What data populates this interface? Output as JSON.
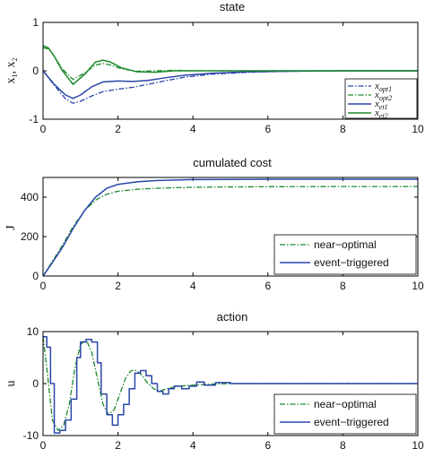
{
  "colors": {
    "blue": "#2a46a8",
    "green": "#1e8a2e",
    "axis": "#000000"
  },
  "chart_data": [
    {
      "type": "line",
      "title": "state",
      "ylabel": "x1, x2",
      "xlim": [
        0,
        10
      ],
      "ylim": [
        -1,
        1
      ],
      "xticks": [
        "0",
        "2",
        "4",
        "6",
        "8",
        "10"
      ],
      "yticks": [
        "-1",
        "0",
        "1"
      ],
      "legend_position": "bottom-right",
      "series": [
        {
          "name": "x_opt1",
          "style": "dashdot",
          "color": "blue",
          "x": [
            0,
            0.3,
            0.6,
            0.8,
            1.0,
            1.3,
            1.6,
            2.0,
            2.4,
            2.8,
            3.3,
            3.8,
            4.5,
            5.5,
            6.5,
            8,
            10
          ],
          "y": [
            0.0,
            -0.3,
            -0.58,
            -0.67,
            -0.63,
            -0.52,
            -0.43,
            -0.38,
            -0.34,
            -0.28,
            -0.2,
            -0.13,
            -0.07,
            -0.03,
            -0.01,
            0.0,
            0.0
          ]
        },
        {
          "name": "x_opt2",
          "style": "dashdot",
          "color": "green",
          "x": [
            0,
            0.15,
            0.3,
            0.5,
            0.8,
            1.1,
            1.4,
            1.6,
            1.8,
            2.1,
            2.5,
            3.0,
            3.5,
            4.2,
            5.0,
            6.5,
            10
          ],
          "y": [
            0.48,
            0.45,
            0.3,
            0.05,
            -0.18,
            -0.05,
            0.12,
            0.15,
            0.12,
            0.04,
            -0.01,
            0.0,
            0.01,
            0.0,
            0.0,
            0.0,
            0.0
          ]
        },
        {
          "name": "x_et1",
          "style": "solid",
          "color": "blue",
          "x": [
            0,
            0.3,
            0.6,
            0.8,
            1.0,
            1.3,
            1.6,
            2.0,
            2.4,
            2.8,
            3.3,
            3.8,
            4.5,
            5.5,
            6.5,
            8,
            10
          ],
          "y": [
            0.0,
            -0.28,
            -0.5,
            -0.57,
            -0.5,
            -0.33,
            -0.23,
            -0.21,
            -0.22,
            -0.2,
            -0.14,
            -0.09,
            -0.05,
            -0.02,
            -0.01,
            0.0,
            0.0
          ]
        },
        {
          "name": "x_et2",
          "style": "solid",
          "color": "green",
          "x": [
            0,
            0.15,
            0.3,
            0.5,
            0.8,
            1.1,
            1.4,
            1.6,
            1.8,
            2.1,
            2.5,
            3.0,
            3.5,
            4.2,
            5.0,
            6.5,
            10
          ],
          "y": [
            0.52,
            0.47,
            0.3,
            0.02,
            -0.28,
            -0.08,
            0.18,
            0.22,
            0.18,
            0.06,
            -0.02,
            -0.03,
            0.0,
            0.0,
            0.0,
            0.0,
            0.0
          ]
        }
      ]
    },
    {
      "type": "line",
      "title": "cumulated cost",
      "ylabel": "J",
      "xlim": [
        0,
        10
      ],
      "ylim": [
        0,
        500
      ],
      "xticks": [
        "0",
        "2",
        "4",
        "6",
        "8",
        "10"
      ],
      "yticks": [
        "0",
        "200",
        "400"
      ],
      "legend_position": "bottom-right",
      "series": [
        {
          "name": "near−optimal",
          "style": "dashdot",
          "color": "green",
          "x": [
            0,
            0.2,
            0.5,
            0.8,
            1.1,
            1.4,
            1.7,
            2.0,
            2.5,
            3.0,
            3.5,
            4.0,
            5.0,
            6.0,
            8.0,
            10.0
          ],
          "y": [
            0,
            60,
            150,
            250,
            330,
            385,
            415,
            430,
            440,
            445,
            448,
            450,
            452,
            453,
            454,
            454
          ]
        },
        {
          "name": "event−triggered",
          "style": "solid",
          "color": "blue",
          "x": [
            0,
            0.2,
            0.5,
            0.8,
            1.1,
            1.4,
            1.7,
            2.0,
            2.5,
            3.0,
            3.5,
            4.0,
            5.0,
            6.0,
            8.0,
            10.0
          ],
          "y": [
            0,
            55,
            140,
            240,
            330,
            400,
            445,
            465,
            478,
            484,
            487,
            489,
            490,
            491,
            491,
            491
          ]
        }
      ]
    },
    {
      "type": "line",
      "title": "action",
      "ylabel": "u",
      "xlim": [
        0,
        10
      ],
      "ylim": [
        -10,
        10
      ],
      "xticks": [
        "0",
        "2",
        "4",
        "6",
        "8",
        "10"
      ],
      "yticks": [
        "-10",
        "0",
        "10"
      ],
      "legend_position": "bottom-right",
      "series": [
        {
          "name": "near−optimal",
          "style": "dashdot",
          "color": "green",
          "x": [
            0,
            0.1,
            0.25,
            0.4,
            0.55,
            0.7,
            0.85,
            1.0,
            1.15,
            1.3,
            1.45,
            1.6,
            1.75,
            1.9,
            2.05,
            2.2,
            2.35,
            2.5,
            2.65,
            2.8,
            2.95,
            3.1,
            3.3,
            3.6,
            4.0,
            4.5,
            5.0,
            6.0,
            10.0
          ],
          "y": [
            9,
            3,
            -7,
            -9,
            -8,
            -4,
            3,
            7.5,
            8.5,
            6,
            1,
            -4,
            -6,
            -5,
            -2,
            1,
            2.5,
            2.5,
            1.5,
            0,
            -1,
            -1.5,
            -1,
            -0.5,
            -0.3,
            -0.1,
            0,
            0,
            0
          ]
        },
        {
          "name": "event−triggered",
          "style": "step",
          "color": "blue",
          "x": [
            0,
            0.1,
            0.2,
            0.3,
            0.45,
            0.6,
            0.75,
            0.9,
            1.0,
            1.15,
            1.3,
            1.45,
            1.55,
            1.7,
            1.85,
            2.0,
            2.15,
            2.3,
            2.45,
            2.6,
            2.75,
            2.9,
            3.05,
            3.2,
            3.35,
            3.5,
            3.7,
            3.9,
            4.1,
            4.3,
            4.6,
            5.0,
            5.5,
            10.0
          ],
          "y": [
            9,
            7,
            0,
            -9.5,
            -9,
            -7,
            -3,
            5,
            8,
            8.5,
            8,
            4,
            -2,
            -6,
            -8,
            -6,
            -4,
            -1,
            2,
            2.5,
            1.5,
            0,
            -1.5,
            -2,
            -1,
            -0.5,
            -1,
            -0.5,
            0.3,
            -0.3,
            0.2,
            0,
            0,
            0
          ]
        }
      ]
    }
  ]
}
